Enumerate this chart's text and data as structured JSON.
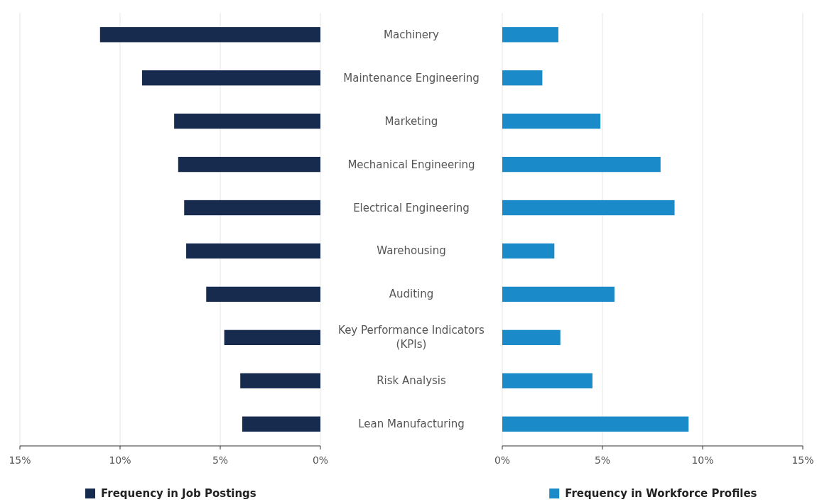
{
  "chart_data": [
    {
      "type": "bar",
      "orientation": "horizontal",
      "categories": [
        "Machinery",
        "Maintenance Engineering",
        "Marketing",
        "Mechanical Engineering",
        "Electrical Engineering",
        "Warehousing",
        "Auditing",
        "Key Performance Indicators (KPIs)",
        "Risk Analysis",
        "Lean Manufacturing"
      ],
      "series": [
        {
          "name": "Frequency in Job Postings",
          "color": "#172b4f",
          "values": [
            11.0,
            8.9,
            7.3,
            7.1,
            6.8,
            6.7,
            5.7,
            4.8,
            4.0,
            3.9
          ]
        }
      ],
      "xlim": [
        15,
        0
      ],
      "xticks": [
        {
          "value": 15,
          "label": "15%"
        },
        {
          "value": 10,
          "label": "10%"
        },
        {
          "value": 5,
          "label": "5%"
        },
        {
          "value": 0,
          "label": "0%"
        }
      ],
      "grid": "x",
      "legend": "bottom"
    },
    {
      "type": "bar",
      "orientation": "horizontal",
      "categories": [
        null,
        null,
        null,
        null,
        null,
        null,
        null,
        null,
        null,
        null
      ],
      "series": [
        {
          "name": "Frequency in Workforce Profiles",
          "color": "#1b8ac8",
          "values": [
            2.8,
            2.0,
            4.9,
            7.9,
            8.6,
            2.6,
            5.6,
            2.9,
            4.5,
            9.3
          ]
        }
      ],
      "xlim": [
        0,
        15
      ],
      "xticks": [
        {
          "value": 0,
          "label": "0%"
        },
        {
          "value": 5,
          "label": "5%"
        },
        {
          "value": 10,
          "label": "10%"
        },
        {
          "value": 15,
          "label": "15%"
        }
      ],
      "grid": "x",
      "legend": "bottom",
      "tick_labels": "x"
    }
  ]
}
